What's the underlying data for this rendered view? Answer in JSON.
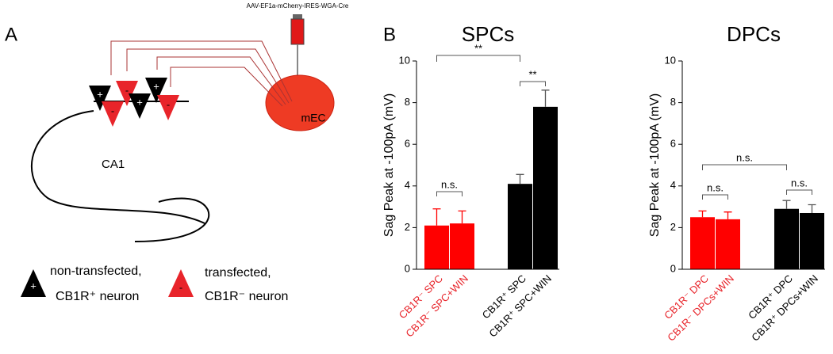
{
  "panel_a": {
    "label": "A",
    "vector": "AAV-EF1a-mCherry-IRES-WGA-Cre",
    "region_source": "mEC",
    "region_target": "CA1",
    "legend": [
      {
        "line1": "non-transfected,",
        "line2": "CB1R⁺ neuron"
      },
      {
        "line1": "transfected,",
        "line2": "CB1R⁻ neuron"
      }
    ]
  },
  "panel_b_label": "B",
  "chart_data": [
    {
      "type": "bar",
      "title": "SPCs",
      "y_label": "Sag Peak at -100pA (mV)",
      "categories": [
        "CB1R⁻ SPC",
        "CB1R⁻ SPC+WIN",
        "CB1R⁺ SPC",
        "CB1R⁺ SPC+WIN"
      ],
      "values": [
        2.1,
        2.2,
        4.1,
        7.8
      ],
      "errors": [
        0.8,
        0.6,
        0.45,
        0.8
      ],
      "colors": [
        "#ff0000",
        "#ff0000",
        "#000000",
        "#000000"
      ],
      "category_colors": [
        "#e8242a",
        "#e8242a",
        "#000000",
        "#000000"
      ],
      "annotations": [
        "**",
        "**",
        "n.s."
      ],
      "ylim": [
        0,
        10
      ],
      "yticks": [
        0,
        2,
        4,
        6,
        8,
        10
      ]
    },
    {
      "type": "bar",
      "title": "DPCs",
      "y_label": "Sag Peak at -100pA (mV)",
      "categories": [
        "CB1R⁻ DPC",
        "CB1R⁻ DPCs+WIN",
        "CB1R⁺ DPC",
        "CB1R⁺ DPCs+WIN"
      ],
      "values": [
        2.5,
        2.4,
        2.9,
        2.7
      ],
      "errors": [
        0.3,
        0.35,
        0.4,
        0.4
      ],
      "colors": [
        "#ff0000",
        "#ff0000",
        "#000000",
        "#000000"
      ],
      "category_colors": [
        "#e8242a",
        "#e8242a",
        "#000000",
        "#000000"
      ],
      "annotations": [
        "n.s.",
        "n.s.",
        "n.s."
      ],
      "ylim": [
        0,
        10
      ],
      "yticks": [
        0,
        2,
        4,
        6,
        8,
        10
      ]
    }
  ]
}
